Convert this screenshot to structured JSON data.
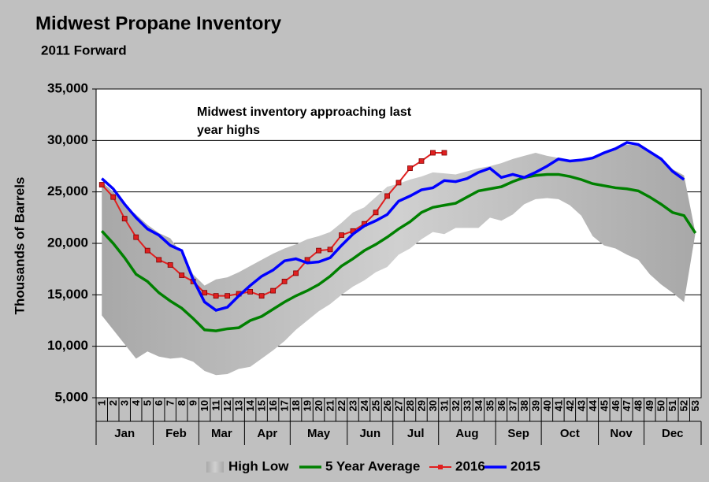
{
  "chart_data": {
    "type": "line",
    "title": "Midwest Propane Inventory",
    "subtitle": "2011 Forward",
    "annotation": "Midwest inventory approaching last year highs",
    "y_label": "Thousands of Barrels",
    "categories": [
      1,
      2,
      3,
      4,
      5,
      6,
      7,
      8,
      9,
      10,
      11,
      12,
      13,
      14,
      15,
      16,
      17,
      18,
      19,
      20,
      21,
      22,
      23,
      24,
      25,
      26,
      27,
      28,
      29,
      30,
      31,
      32,
      33,
      34,
      35,
      36,
      37,
      38,
      39,
      40,
      41,
      42,
      43,
      44,
      45,
      46,
      47,
      48,
      49,
      50,
      51,
      52,
      53
    ],
    "months": [
      {
        "label": "Jan",
        "weeks": [
          1,
          5
        ]
      },
      {
        "label": "Feb",
        "weeks": [
          6,
          9
        ]
      },
      {
        "label": "Mar",
        "weeks": [
          10,
          13
        ]
      },
      {
        "label": "Apr",
        "weeks": [
          14,
          17
        ]
      },
      {
        "label": "May",
        "weeks": [
          18,
          22
        ]
      },
      {
        "label": "Jun",
        "weeks": [
          23,
          26
        ]
      },
      {
        "label": "Jul",
        "weeks": [
          27,
          30
        ]
      },
      {
        "label": "Aug",
        "weeks": [
          31,
          35
        ]
      },
      {
        "label": "Sep",
        "weeks": [
          36,
          39
        ]
      },
      {
        "label": "Oct",
        "weeks": [
          40,
          44
        ]
      },
      {
        "label": "Nov",
        "weeks": [
          45,
          48
        ]
      },
      {
        "label": "Dec",
        "weeks": [
          49,
          53
        ]
      }
    ],
    "ylim": [
      5000,
      35000
    ],
    "yticks": [
      {
        "value": 5000,
        "label": "5,000"
      },
      {
        "value": 10000,
        "label": "10,000"
      },
      {
        "value": 15000,
        "label": "15,000"
      },
      {
        "value": 20000,
        "label": "20,000"
      },
      {
        "value": 25000,
        "label": "25,000"
      },
      {
        "value": 30000,
        "label": "30,000"
      },
      {
        "value": 35000,
        "label": "35,000"
      }
    ],
    "grid": true,
    "legend": "bottom",
    "series": [
      {
        "name": "High Low",
        "kind": "band",
        "color": "#b4b4b4",
        "high": [
          26000,
          25000,
          23700,
          22800,
          21800,
          21000,
          20500,
          19000,
          17000,
          15900,
          16500,
          16700,
          17200,
          17800,
          18400,
          19000,
          19500,
          19900,
          20400,
          20700,
          21100,
          22000,
          23000,
          23500,
          24500,
          25500,
          25800,
          26200,
          26500,
          26900,
          26800,
          26700,
          27000,
          27300,
          27500,
          27800,
          28200,
          28500,
          28800,
          28500,
          28300,
          28000,
          28000,
          28400,
          28800,
          29200,
          29600,
          29500,
          28800,
          28200,
          27200,
          26600,
          21000
        ],
        "low": [
          13000,
          11600,
          10200,
          8800,
          9500,
          9000,
          8800,
          8900,
          8500,
          7600,
          7200,
          7300,
          7800,
          8000,
          8800,
          9600,
          10500,
          11600,
          12500,
          13400,
          14100,
          15000,
          15800,
          16400,
          17200,
          17700,
          18900,
          19500,
          20400,
          21100,
          20900,
          21500,
          21500,
          21500,
          22500,
          22200,
          22800,
          23800,
          24300,
          24400,
          24300,
          23700,
          22700,
          20700,
          19800,
          19500,
          18900,
          18400,
          17000,
          16000,
          15200,
          14300,
          21000
        ]
      },
      {
        "name": "5 Year Average",
        "kind": "line",
        "color": "#008000",
        "values": [
          21200,
          20000,
          18600,
          17000,
          16300,
          15200,
          14400,
          13700,
          12700,
          11600,
          11500,
          11700,
          11800,
          12500,
          12900,
          13600,
          14300,
          14900,
          15400,
          16000,
          16800,
          17800,
          18500,
          19300,
          19900,
          20600,
          21400,
          22100,
          23000,
          23500,
          23700,
          23900,
          24500,
          25100,
          25300,
          25500,
          26000,
          26400,
          26600,
          26700,
          26700,
          26500,
          26200,
          25800,
          25600,
          25400,
          25300,
          25100,
          24500,
          23800,
          23000,
          22700,
          21000
        ]
      },
      {
        "name": "2016",
        "kind": "line",
        "markers": true,
        "color": "#e02020",
        "values": [
          25700,
          24500,
          22400,
          20600,
          19300,
          18400,
          17900,
          16900,
          16300,
          15200,
          14900,
          14900,
          15100,
          15300,
          14900,
          15400,
          16300,
          17100,
          18400,
          19300,
          19400,
          20800,
          21200,
          21900,
          23000,
          24600,
          25900,
          27300,
          28000,
          28800,
          28800,
          null,
          null,
          null,
          null,
          null,
          null,
          null,
          null,
          null,
          null,
          null,
          null,
          null,
          null,
          null,
          null,
          null,
          null,
          null,
          null,
          null,
          null
        ]
      },
      {
        "name": "2015",
        "kind": "line",
        "color": "#0000ff",
        "values": [
          26300,
          25300,
          23800,
          22500,
          21400,
          20800,
          19800,
          19300,
          16500,
          14300,
          13500,
          13800,
          14900,
          15900,
          16800,
          17400,
          18300,
          18500,
          18100,
          18200,
          18600,
          19800,
          20900,
          21700,
          22200,
          22800,
          24100,
          24600,
          25200,
          25400,
          26100,
          26000,
          26300,
          26900,
          27300,
          26400,
          26700,
          26400,
          26900,
          27500,
          28200,
          28000,
          28100,
          28300,
          28800,
          29200,
          29800,
          29600,
          28900,
          28200,
          27000,
          26200,
          null
        ]
      }
    ]
  }
}
